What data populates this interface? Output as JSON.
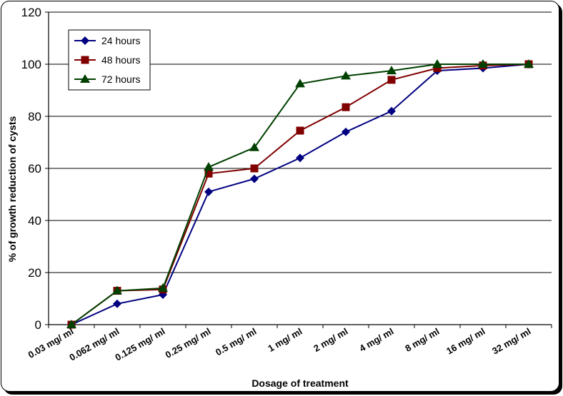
{
  "chart_data": {
    "type": "line",
    "title": "",
    "xlabel": "Dosage of treatment",
    "ylabel": "% of growth reduction of cysts",
    "ylim": [
      0,
      120
    ],
    "yticks": [
      "0",
      "20",
      "40",
      "60",
      "80",
      "100",
      "120"
    ],
    "grid": "horizontal",
    "legend_position": "top-left",
    "categories": [
      "0.03 mg/ ml",
      "0.062 mg/ ml",
      "0.125 mg/ ml",
      "0.25 mg/ ml",
      "0.5 mg/ ml",
      "1 mg/ ml",
      "2 mg/ ml",
      "4 mg/ ml",
      "8 mg/ ml",
      "16 mg/ ml",
      "32 mg/ ml"
    ],
    "series": [
      {
        "name": "24 hours",
        "marker": "diamond",
        "color": "#000080",
        "values": [
          0,
          8,
          11.5,
          51,
          56,
          64,
          74,
          82,
          97.5,
          98.5,
          100
        ]
      },
      {
        "name": "48 hours",
        "marker": "square",
        "color": "#800000",
        "values": [
          0,
          13,
          13.5,
          58,
          60,
          74.5,
          83.5,
          94,
          98.5,
          99.5,
          100
        ]
      },
      {
        "name": "72 hours",
        "marker": "triangle",
        "color": "#004000",
        "values": [
          0,
          13,
          14,
          60.5,
          68,
          92.5,
          95.5,
          97.5,
          100,
          100,
          100
        ]
      }
    ]
  }
}
